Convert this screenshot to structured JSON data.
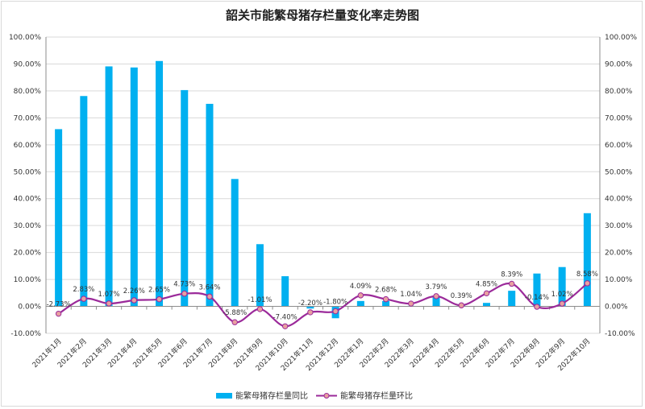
{
  "chart_data": {
    "type": "bar+line",
    "title": "韶关市能繁母猪存栏量变化率走势图",
    "categories": [
      "2021年1月",
      "2021年2月",
      "2021年3月",
      "2021年4月",
      "2021年5月",
      "2021年6月",
      "2021年7月",
      "2021年8月",
      "2021年9月",
      "2021年10月",
      "2021年11月",
      "2021年12月",
      "2022年1月",
      "2022年2月",
      "2022年3月",
      "2022年4月",
      "2022年5月",
      "2022年6月",
      "2022年7月",
      "2022年8月",
      "2022年9月",
      "2022年10月"
    ],
    "series": [
      {
        "name": "能繁母猪存栏量同比",
        "type": "bar",
        "color": "#00b0f0",
        "values": [
          65.8,
          78.1,
          89.1,
          88.7,
          91.1,
          80.3,
          75.2,
          47.3,
          23.1,
          11.2,
          -0.8,
          -4.4,
          2.0,
          2.0,
          0.2,
          3.9,
          0.3,
          1.3,
          5.8,
          12.2,
          14.6,
          34.6
        ]
      },
      {
        "name": "能繁母猪存栏量环比",
        "type": "line",
        "color": "#9b2a9a",
        "marker_color": "#e8a0a0",
        "values": [
          -2.73,
          2.83,
          1.07,
          2.26,
          2.65,
          4.73,
          3.64,
          -5.88,
          -1.01,
          -7.4,
          -2.2,
          -1.8,
          4.09,
          2.68,
          1.04,
          3.79,
          0.39,
          4.85,
          8.39,
          -0.14,
          1.02,
          8.58
        ],
        "labels": [
          "-2.73%",
          "2.83%",
          "1.07%",
          "2.26%",
          "2.65%",
          "4.73%",
          "3.64%",
          "-5.88%",
          "-1.01%",
          "-7.40%",
          "-2.20%",
          "-1.80%",
          "4.09%",
          "2.68%",
          "1.04%",
          "3.79%",
          "0.39%",
          "4.85%",
          "8.39%",
          "-0.14%",
          "1.02%",
          "8.58%"
        ]
      }
    ],
    "ylim": [
      -10,
      100
    ],
    "yticks": [
      -10,
      0,
      10,
      20,
      30,
      40,
      50,
      60,
      70,
      80,
      90,
      100
    ],
    "ytick_labels": [
      "-10.00%",
      "0.00%",
      "10.00%",
      "20.00%",
      "30.00%",
      "40.00%",
      "50.00%",
      "60.00%",
      "70.00%",
      "80.00%",
      "90.00%",
      "100.00%"
    ],
    "secondary_y_same_scale": true,
    "grid": true,
    "legend": "bottom"
  }
}
